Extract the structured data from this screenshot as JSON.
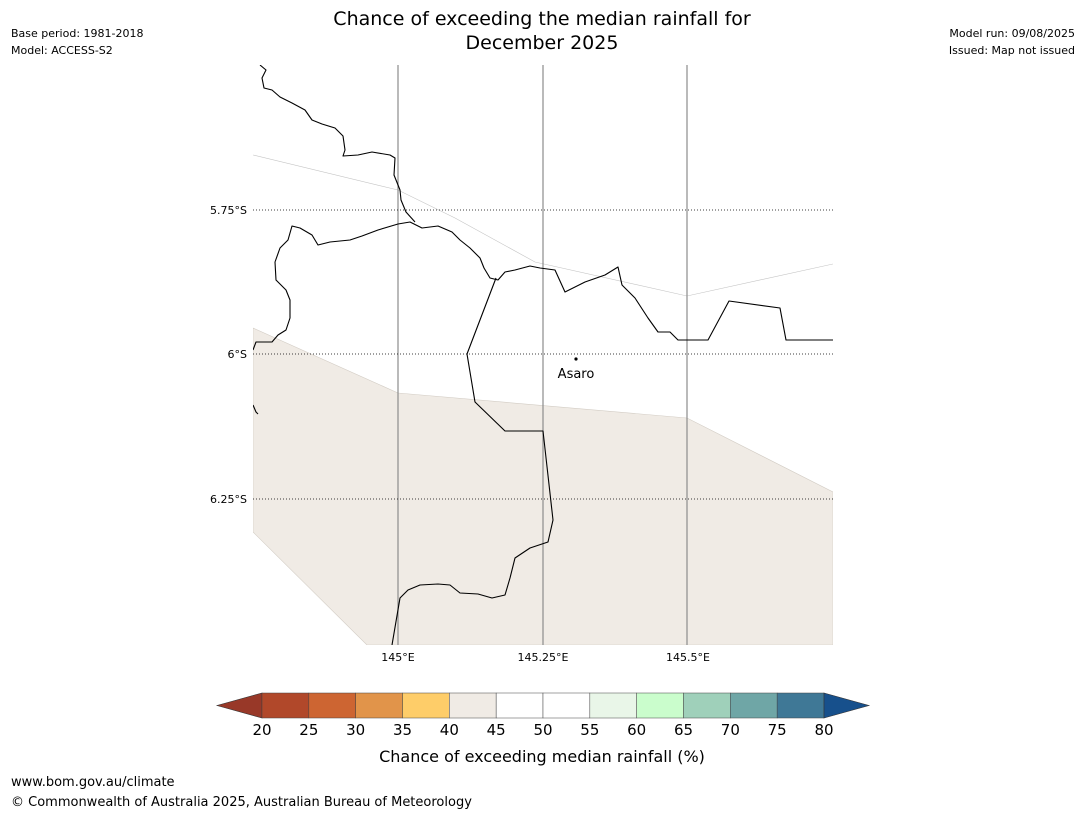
{
  "header": {
    "title_line1": "Chance of exceeding the median rainfall for",
    "title_line2": "December 2025",
    "base_period": "Base period: 1981-2018",
    "model": "Model: ACCESS-S2",
    "model_run": "Model run: 09/08/2025",
    "issued": "Issued: Map not issued"
  },
  "map": {
    "latitude_labels": [
      "5.75°S",
      "6°S",
      "6.25°S"
    ],
    "longitude_labels": [
      "145°E",
      "145.25°E",
      "145.5°E"
    ],
    "place": {
      "name": "Asaro"
    },
    "fill_class": "40-45",
    "fill_color": "#f0ebe5"
  },
  "colorbar": {
    "ticks": [
      "20",
      "25",
      "30",
      "35",
      "40",
      "45",
      "50",
      "55",
      "60",
      "65",
      "70",
      "75",
      "80"
    ],
    "colors": [
      "#b1482a",
      "#cd6532",
      "#e1944a",
      "#fecd69",
      "#f0ebe5",
      "#ffffff",
      "#ffffff",
      "#e9f6e8",
      "#cafdcc",
      "#9fd0ba",
      "#6fa6a6",
      "#3f7896"
    ],
    "under_color": "#983828",
    "over_color": "#17508c",
    "label": "Chance of exceeding median rainfall (%)"
  },
  "footer": {
    "url": "www.bom.gov.au/climate",
    "copyright": "© Commonwealth of Australia 2025, Australian Bureau of Meteorology"
  }
}
